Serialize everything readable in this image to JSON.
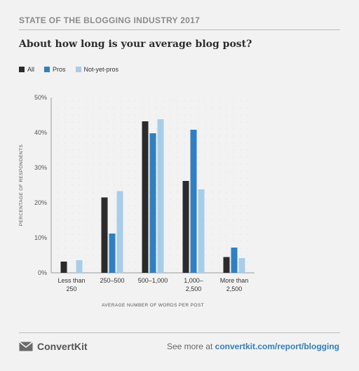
{
  "header": {
    "label": "STATE OF THE BLOGGING INDUSTRY 2017"
  },
  "chart_data": {
    "type": "bar",
    "title": "About how long is your average blog post?",
    "xlabel": "AVERAGE NUMBER OF WORDS PER POST",
    "ylabel": "PERCENTAGE OF RESPONDENTS",
    "ylim": [
      0,
      50
    ],
    "yticks": [
      0,
      10,
      20,
      30,
      40,
      50
    ],
    "ytick_labels": [
      "0%",
      "10%",
      "20%",
      "30%",
      "40%",
      "50%"
    ],
    "grid": true,
    "legend_position": "top-left",
    "categories": [
      [
        "Less than",
        "250"
      ],
      [
        "250–500"
      ],
      [
        "500–1,000"
      ],
      [
        "1,000–",
        "2,500"
      ],
      [
        "More than",
        "2,500"
      ]
    ],
    "series": [
      {
        "name": "All",
        "color": "#2b2b2b",
        "values": [
          3.2,
          21.5,
          43.2,
          26.2,
          4.5
        ]
      },
      {
        "name": "Pros",
        "color": "#2f7fc1",
        "values": [
          0,
          11.2,
          39.8,
          40.8,
          7.2
        ]
      },
      {
        "name": "Not-yet-pros",
        "color": "#a8cde9",
        "values": [
          3.6,
          23.3,
          43.8,
          23.8,
          4.2
        ]
      }
    ]
  },
  "footer": {
    "brand": "ConvertKit",
    "cta_prefix": "See more at ",
    "cta_link": "convertkit.com/report/blogging",
    "logo_icon": "envelope-icon"
  }
}
